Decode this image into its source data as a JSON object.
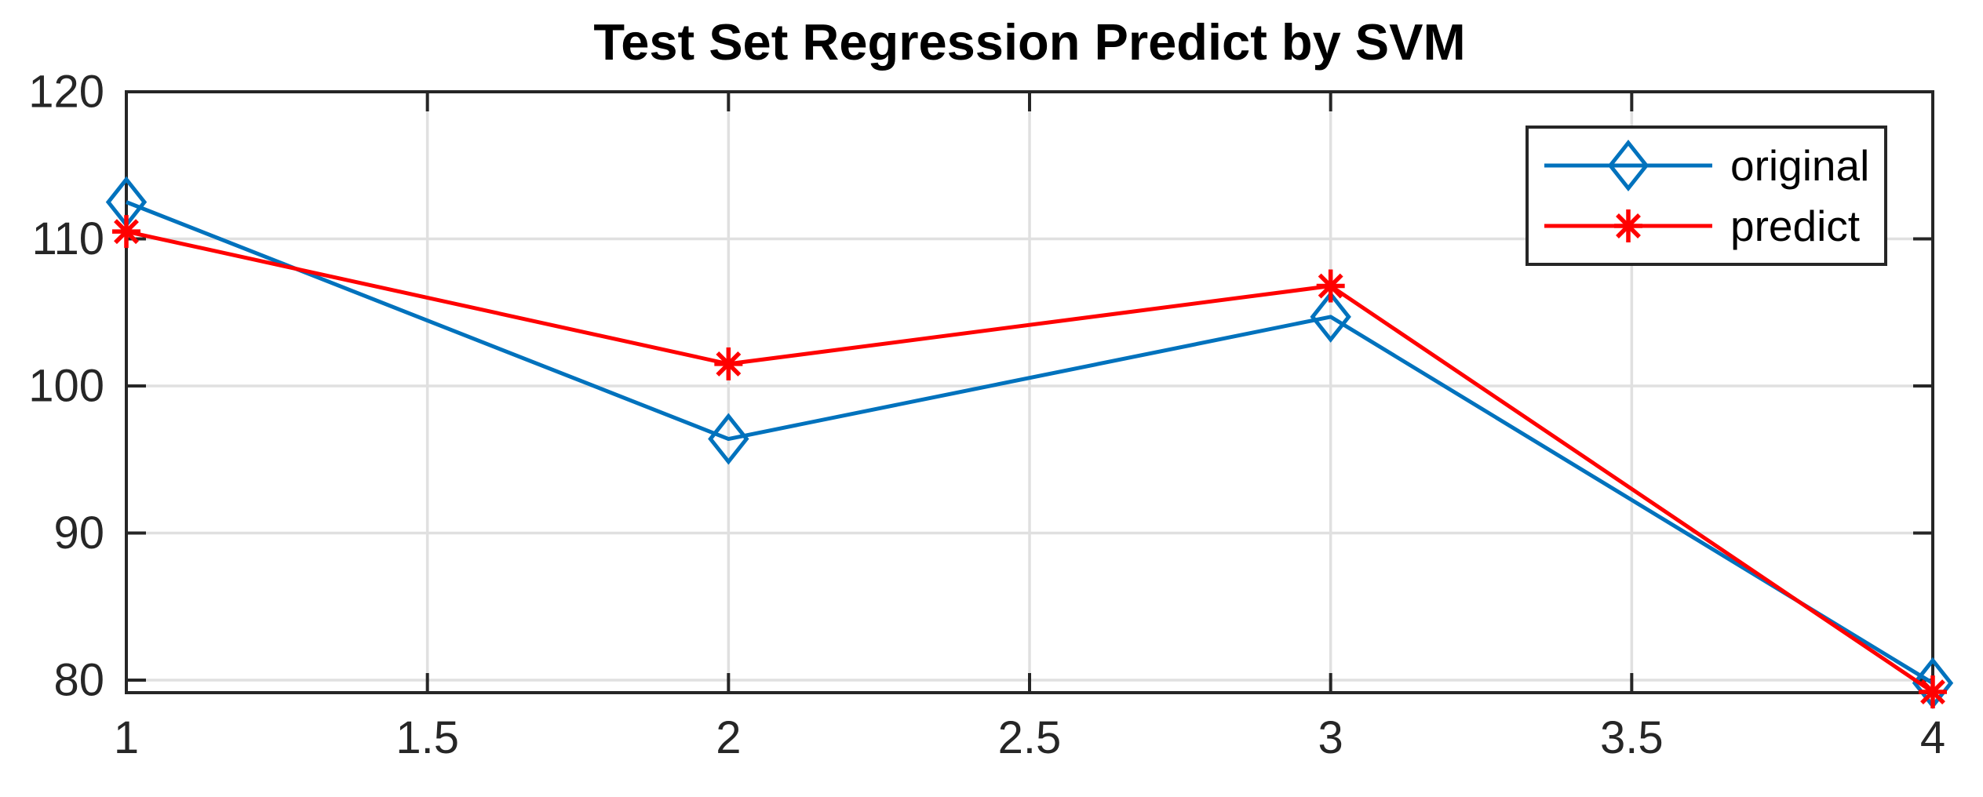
{
  "chart_data": {
    "type": "line",
    "title": "Test Set Regression Predict by SVM",
    "x": [
      1,
      2,
      3,
      4
    ],
    "series": [
      {
        "name": "original",
        "values": [
          112.5,
          96.4,
          104.7,
          79.8
        ],
        "color": "#0072BD",
        "marker": "diamond"
      },
      {
        "name": "predict",
        "values": [
          110.5,
          101.5,
          106.8,
          79.2
        ],
        "color": "#FF0000",
        "marker": "asterisk"
      }
    ],
    "xlim": [
      1,
      4
    ],
    "ylim": [
      79.15,
      120
    ],
    "xticks": [
      1,
      1.5,
      2,
      2.5,
      3,
      3.5,
      4
    ],
    "xtick_labels": [
      "1",
      "1.5",
      "2",
      "2.5",
      "3",
      "3.5",
      "4"
    ],
    "yticks": [
      80,
      90,
      100,
      110,
      120
    ],
    "ytick_labels": [
      "80",
      "90",
      "100",
      "110",
      "120"
    ],
    "grid": true,
    "box": true,
    "legend": {
      "position": "top-right",
      "entries": [
        "original",
        "predict"
      ]
    },
    "colors": {
      "axis": "#262626",
      "tick_label": "#262626",
      "grid": "#E0E0E0",
      "title": "#000000",
      "legend_text": "#000000",
      "legend_border": "#262626",
      "legend_background": "#FFFFFF",
      "plot_background": "#FFFFFF"
    }
  }
}
